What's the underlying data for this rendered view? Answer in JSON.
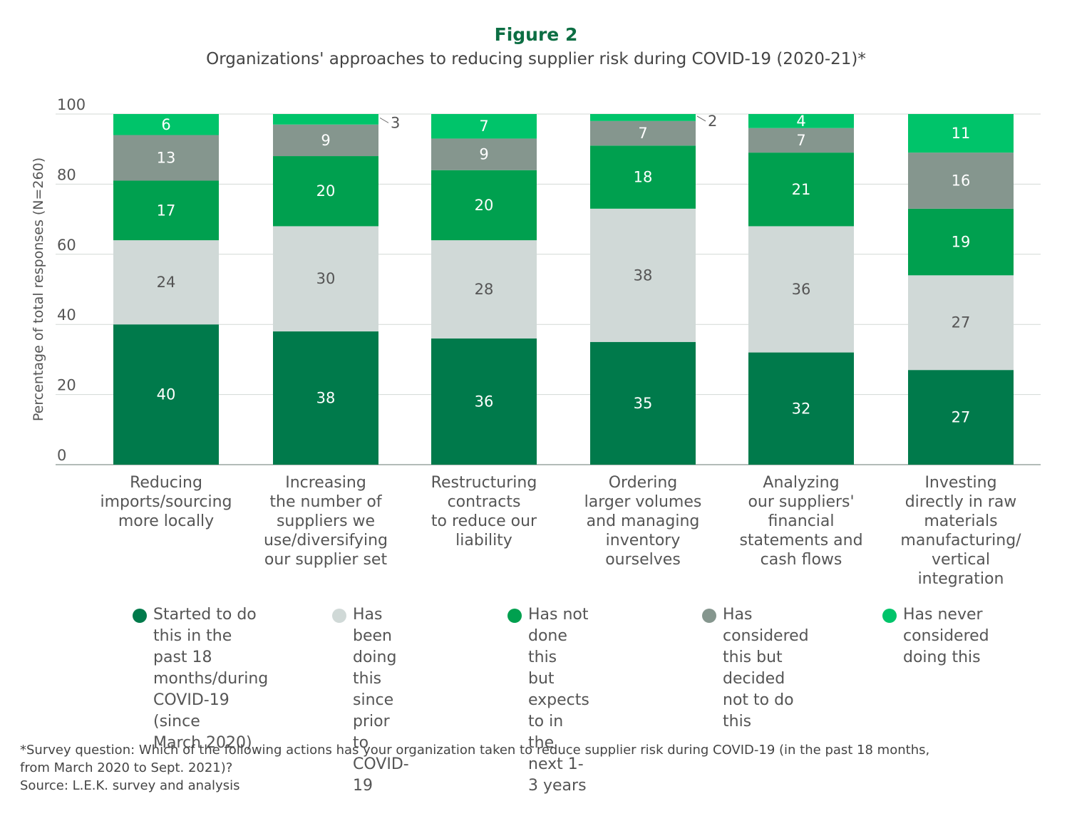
{
  "figure_label": "Figure 2",
  "chart_data": {
    "type": "bar",
    "stacked": true,
    "title": "Organizations' approaches to reducing supplier risk during COVID-19 (2020-21)*",
    "ylabel": "Percentage of total responses (N=260)",
    "ylim": [
      0,
      100
    ],
    "yticks": [
      0,
      20,
      40,
      60,
      80,
      100
    ],
    "grid": true,
    "categories": [
      "Reducing\nimports/sourcing\nmore locally",
      "Increasing\nthe number of\nsuppliers we\nuse/diversifying\nour supplier set",
      "Restructuring\ncontracts\nto reduce our\nliability",
      "Ordering\nlarger volumes\nand managing\ninventory\nourselves",
      "Analyzing\nour suppliers'\nfinancial\nstatements and\ncash flows",
      "Investing\ndirectly in raw\nmaterials\nmanufacturing/\nvertical\nintegration"
    ],
    "series": [
      {
        "name": "Started to do this in the past 18 months/during COVID-19 (since March 2020)",
        "color": "#007a4b",
        "values": [
          40,
          38,
          36,
          35,
          32,
          27
        ]
      },
      {
        "name": "Has been doing this since prior to COVID-19",
        "color": "#d0d9d7",
        "values": [
          24,
          30,
          28,
          38,
          36,
          27
        ]
      },
      {
        "name": "Has not done this but expects to in the next 1-3 years",
        "color": "#00a04f",
        "values": [
          17,
          20,
          20,
          18,
          21,
          19
        ]
      },
      {
        "name": "Has considered this but decided not to do this",
        "color": "#85968e",
        "values": [
          13,
          9,
          9,
          7,
          7,
          16
        ]
      },
      {
        "name": "Has never considered doing this",
        "color": "#00c46a",
        "values": [
          6,
          3,
          7,
          2,
          4,
          11
        ]
      }
    ],
    "legend_position": "bottom"
  },
  "legend": [
    {
      "text": "Started to do\nthis in the past 18\nmonths/during\nCOVID-19 (since\nMarch 2020)",
      "color": "#007a4b"
    },
    {
      "text": "Has been doing\nthis since prior\nto COVID-19",
      "color": "#d0d9d7"
    },
    {
      "text": "Has not done this\nbut expects to in\nthe next 1-3 years",
      "color": "#00a04f"
    },
    {
      "text": "Has considered\nthis but decided\nnot to do this",
      "color": "#85968e"
    },
    {
      "text": "Has never\nconsidered\ndoing this",
      "color": "#00c46a"
    }
  ],
  "footnote": "*Survey question: Which of the following actions has your organization taken to reduce supplier risk during COVID-19 (in the past 18 months,\nfrom March 2020 to Sept. 2021)?\nSource: L.E.K. survey and analysis"
}
